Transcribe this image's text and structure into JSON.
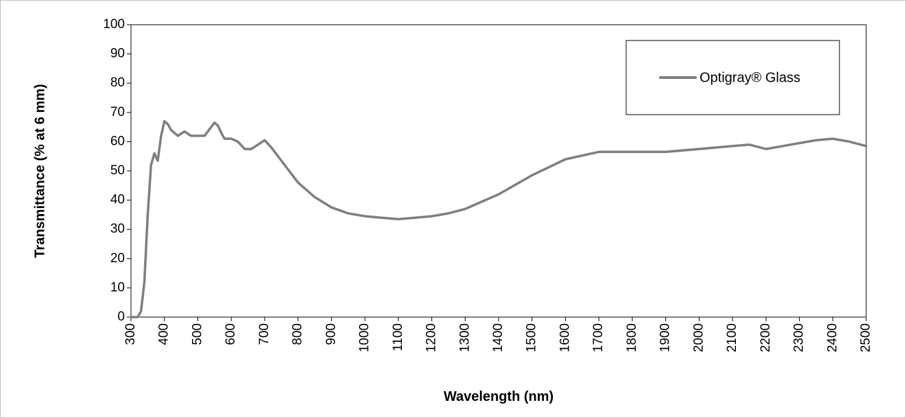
{
  "chart_data": {
    "type": "line",
    "title": "",
    "xlabel": "Wavelength (nm)",
    "ylabel": "Transmittance (% at 6 mm)",
    "xlim": [
      300,
      2500
    ],
    "ylim": [
      0,
      100
    ],
    "x_ticks": [
      300,
      400,
      500,
      600,
      700,
      800,
      900,
      1000,
      1100,
      1200,
      1300,
      1400,
      1500,
      1600,
      1700,
      1800,
      1900,
      2000,
      2100,
      2200,
      2300,
      2400,
      2500
    ],
    "y_ticks": [
      0,
      10,
      20,
      30,
      40,
      50,
      60,
      70,
      80,
      90,
      100
    ],
    "grid": false,
    "legend_position": "top-right",
    "series": [
      {
        "name": "Optigray® Glass",
        "color": "#7f7f7f",
        "x": [
          300,
          320,
          330,
          340,
          350,
          360,
          370,
          380,
          390,
          400,
          410,
          420,
          440,
          460,
          480,
          500,
          520,
          540,
          550,
          560,
          570,
          580,
          600,
          620,
          640,
          660,
          680,
          700,
          720,
          760,
          800,
          850,
          900,
          950,
          1000,
          1050,
          1100,
          1150,
          1200,
          1250,
          1300,
          1400,
          1500,
          1600,
          1700,
          1800,
          1900,
          2000,
          2100,
          2150,
          2200,
          2250,
          2300,
          2350,
          2400,
          2450,
          2500
        ],
        "values": [
          0,
          0,
          2,
          12,
          35,
          52,
          56,
          53.5,
          62,
          67,
          66,
          64,
          62,
          63.5,
          62,
          62,
          62,
          65,
          66.5,
          65.5,
          63,
          61,
          61,
          60,
          57.5,
          57.5,
          59,
          60.5,
          58,
          52,
          46,
          41,
          37.5,
          35.5,
          34.5,
          34,
          33.5,
          34,
          34.5,
          35.5,
          37,
          42,
          48.5,
          54,
          56.5,
          56.5,
          56.5,
          57.5,
          58.5,
          59,
          57.5,
          58.5,
          59.5,
          60.5,
          61,
          60,
          58.5
        ]
      }
    ]
  }
}
